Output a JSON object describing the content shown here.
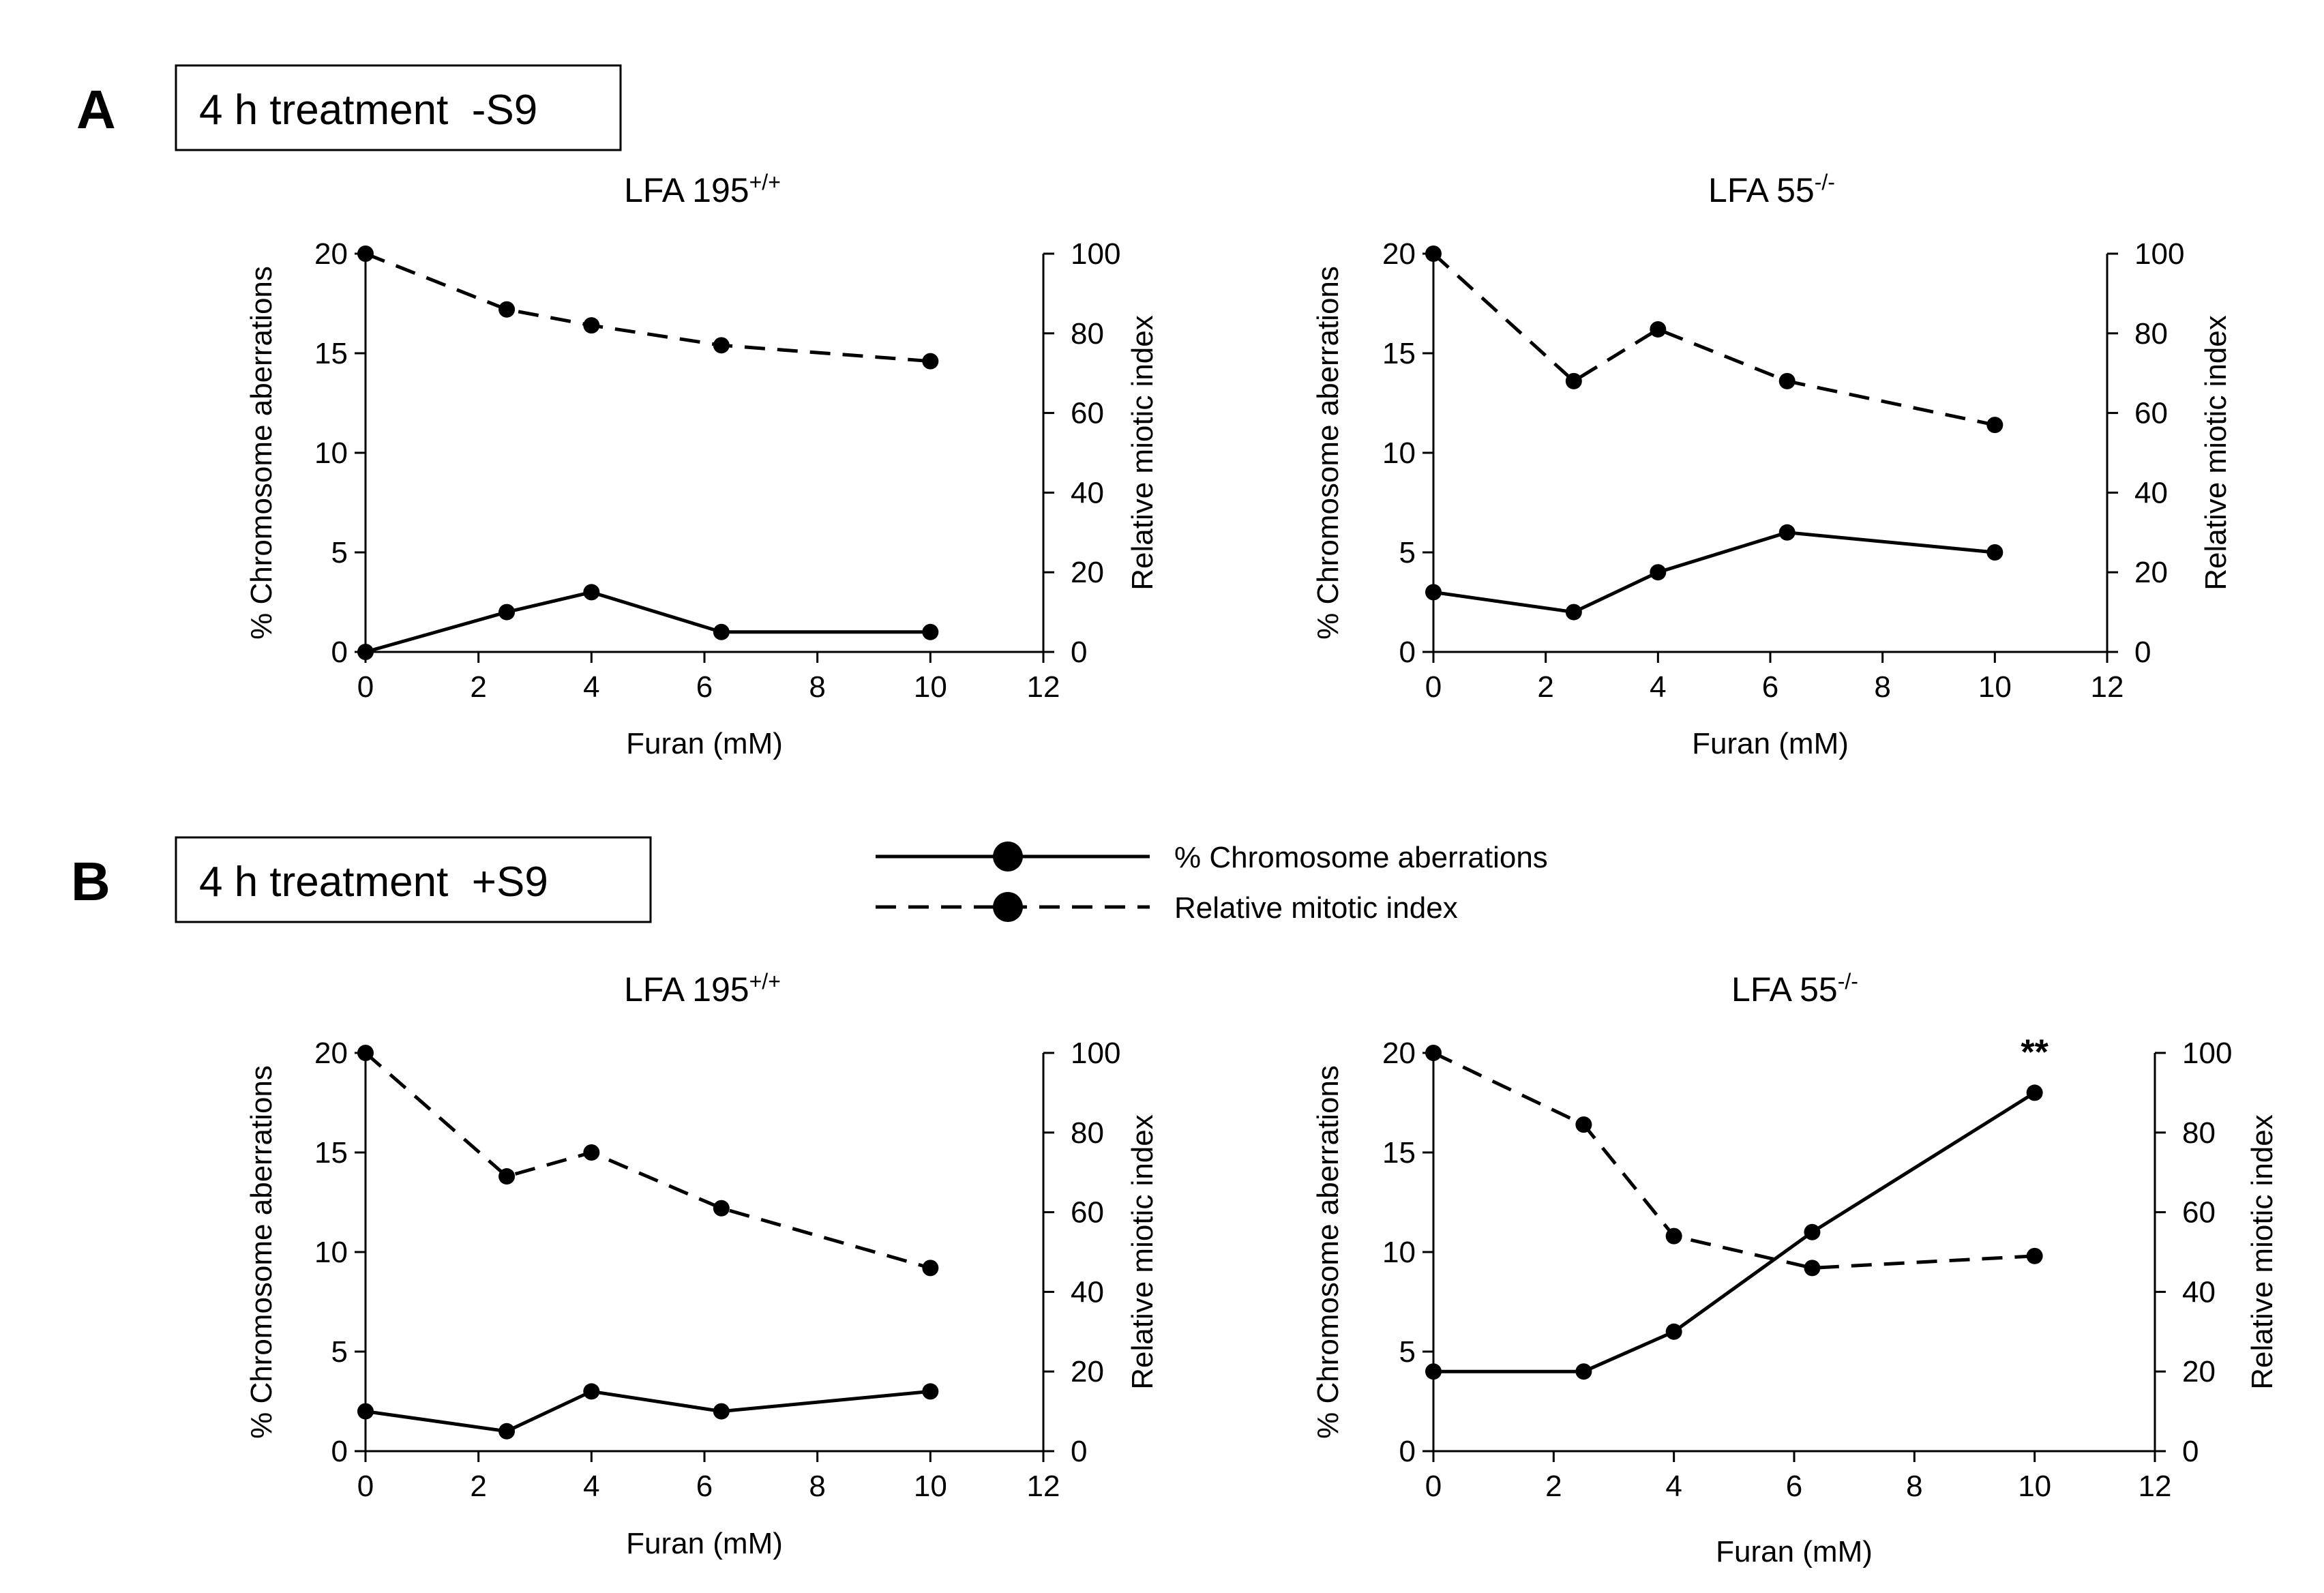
{
  "panels": [
    {
      "letter": "A",
      "box_label": "4 h treatment  -S9"
    },
    {
      "letter": "B",
      "box_label": "4 h treatment  +S9"
    }
  ],
  "legend": [
    {
      "label": "% Chromosome aberrations",
      "style": "solid"
    },
    {
      "label": "Relative mitotic index",
      "style": "dashed"
    }
  ],
  "colors": {
    "line": "#000000",
    "marker": "#000000",
    "background": "#ffffff"
  },
  "chart_data": [
    {
      "panel": "A",
      "type": "line",
      "title": "LFA 195",
      "title_sup": "+/+",
      "xlabel": "Furan (mM)",
      "ylabel": "% Chromosome aberrations",
      "y2label": "Relative miotic index",
      "xlim": [
        0,
        12
      ],
      "ylim": [
        0,
        20
      ],
      "y2lim": [
        0,
        100
      ],
      "xticks": [
        0,
        2,
        4,
        6,
        8,
        10,
        12
      ],
      "yticks": [
        0,
        5,
        10,
        15,
        20
      ],
      "y2ticks": [
        0,
        20,
        40,
        60,
        80,
        100
      ],
      "series": [
        {
          "name": "% Chromosome aberrations",
          "axis": "left",
          "style": "solid",
          "x": [
            0,
            2.5,
            4,
            6.3,
            10
          ],
          "y": [
            0,
            2,
            3,
            1,
            1
          ]
        },
        {
          "name": "Relative mitotic index",
          "axis": "right",
          "style": "dashed",
          "x": [
            0,
            2.5,
            4,
            6.3,
            10
          ],
          "y": [
            100,
            86,
            82,
            77,
            73
          ]
        }
      ],
      "annotations": []
    },
    {
      "panel": "A",
      "type": "line",
      "title": "LFA 55",
      "title_sup": "-/-",
      "xlabel": "Furan (mM)",
      "ylabel": "% Chromosome aberrations",
      "y2label": "Relative miotic index",
      "xlim": [
        0,
        12
      ],
      "ylim": [
        0,
        20
      ],
      "y2lim": [
        0,
        100
      ],
      "xticks": [
        0,
        2,
        4,
        6,
        8,
        10,
        12
      ],
      "yticks": [
        0,
        5,
        10,
        15,
        20
      ],
      "y2ticks": [
        0,
        20,
        40,
        60,
        80,
        100
      ],
      "series": [
        {
          "name": "% Chromosome aberrations",
          "axis": "left",
          "style": "solid",
          "x": [
            0,
            2.5,
            4,
            6.3,
            10
          ],
          "y": [
            3,
            2,
            4,
            6,
            5
          ]
        },
        {
          "name": "Relative mitotic index",
          "axis": "right",
          "style": "dashed",
          "x": [
            0,
            2.5,
            4,
            6.3,
            10
          ],
          "y": [
            100,
            68,
            81,
            68,
            57
          ]
        }
      ],
      "annotations": []
    },
    {
      "panel": "B",
      "type": "line",
      "title": "LFA 195",
      "title_sup": "+/+",
      "xlabel": "Furan (mM)",
      "ylabel": "% Chromosome aberrations",
      "y2label": "Relative miotic index",
      "xlim": [
        0,
        12
      ],
      "ylim": [
        0,
        20
      ],
      "y2lim": [
        0,
        100
      ],
      "xticks": [
        0,
        2,
        4,
        6,
        8,
        10,
        12
      ],
      "yticks": [
        0,
        5,
        10,
        15,
        20
      ],
      "y2ticks": [
        0,
        20,
        40,
        60,
        80,
        100
      ],
      "series": [
        {
          "name": "% Chromosome aberrations",
          "axis": "left",
          "style": "solid",
          "x": [
            0,
            2.5,
            4,
            6.3,
            10
          ],
          "y": [
            2,
            1,
            3,
            2,
            3
          ]
        },
        {
          "name": "Relative mitotic index",
          "axis": "right",
          "style": "dashed",
          "x": [
            0,
            2.5,
            4,
            6.3,
            10
          ],
          "y": [
            100,
            69,
            75,
            61,
            46
          ]
        }
      ],
      "annotations": []
    },
    {
      "panel": "B",
      "type": "line",
      "title": "LFA 55",
      "title_sup": "-/-",
      "xlabel": "Furan (mM)",
      "ylabel": "% Chromosome aberrations",
      "y2label": "Relative miotic index",
      "xlim": [
        0,
        12
      ],
      "ylim": [
        0,
        20
      ],
      "y2lim": [
        0,
        100
      ],
      "xticks": [
        0,
        2,
        4,
        6,
        8,
        10,
        12
      ],
      "yticks": [
        0,
        5,
        10,
        15,
        20
      ],
      "y2ticks": [
        0,
        20,
        40,
        60,
        80,
        100
      ],
      "series": [
        {
          "name": "% Chromosome aberrations",
          "axis": "left",
          "style": "solid",
          "x": [
            0,
            2.5,
            4,
            6.3,
            10
          ],
          "y": [
            4,
            4,
            6,
            11,
            18
          ]
        },
        {
          "name": "Relative mitotic index",
          "axis": "right",
          "style": "dashed",
          "x": [
            0,
            2.5,
            4,
            6.3,
            10
          ],
          "y": [
            100,
            82,
            54,
            46,
            49
          ]
        }
      ],
      "annotations": [
        {
          "text": "**",
          "x": 10,
          "y": 18,
          "axis": "left"
        }
      ]
    }
  ]
}
